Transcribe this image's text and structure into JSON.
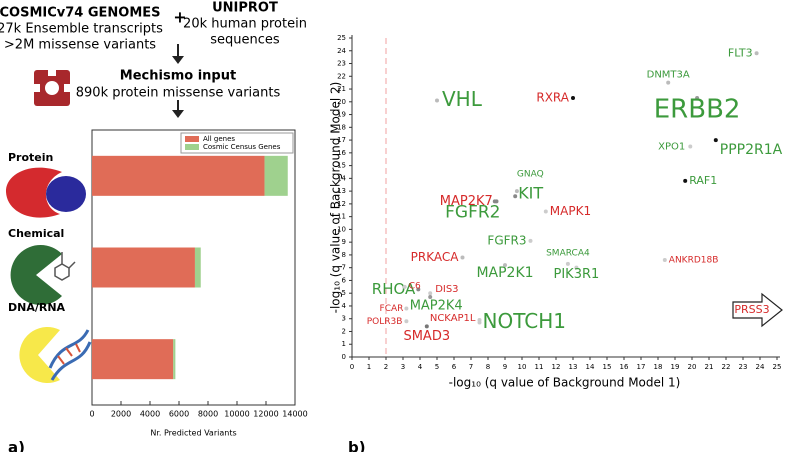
{
  "diagram": {
    "source1_title": "COSMICv74 GENOMES",
    "source1_line1": "27k Ensemble transcripts",
    "source1_line2": ">2M missense variants",
    "plus": "+",
    "source2_title": "UNIPROT",
    "source2_line1": "20k human protein",
    "source2_line2": "sequences",
    "input_title": "Mechismo input",
    "input_line": "890k protein missense variants"
  },
  "panel_labels": [
    "a)",
    "b)"
  ],
  "chart_data": [
    {
      "type": "bar",
      "orientation": "horizontal",
      "stacked": true,
      "categories": [
        "Protein",
        "Chemical",
        "DNA/RNA"
      ],
      "series": [
        {
          "name": "All genes",
          "color": "#e06c57",
          "values": [
            11900,
            7100,
            5600
          ]
        },
        {
          "name": "Cosmic Census Genes",
          "color": "#9fd18e",
          "values": [
            1600,
            400,
            150
          ]
        }
      ],
      "xlim": [
        0,
        14000
      ],
      "xticks": [
        0,
        2000,
        4000,
        6000,
        8000,
        10000,
        12000,
        14000
      ],
      "xlabel": "Nr. Predicted Variants",
      "legend": "upper right"
    },
    {
      "type": "scatter",
      "xlabel": "-log₁₀ (q value of Background Model 1)",
      "ylabel": "-log₁₀ (q value of Background Model 2)",
      "xlim": [
        0,
        25
      ],
      "ylim": [
        0,
        25
      ],
      "xticks": [
        0,
        1,
        2,
        3,
        4,
        5,
        6,
        7,
        8,
        9,
        10,
        11,
        12,
        13,
        14,
        15,
        16,
        17,
        18,
        19,
        20,
        21,
        22,
        23,
        24,
        25
      ],
      "yticks": [
        0,
        1,
        2,
        3,
        4,
        5,
        6,
        7,
        8,
        9,
        10,
        11,
        12,
        13,
        14,
        15,
        16,
        17,
        18,
        19,
        20,
        21,
        22,
        23,
        24,
        25
      ],
      "threshold_x": 2,
      "points": [
        {
          "label": "FLT3",
          "x": 23.8,
          "y": 23.8,
          "color": "#3c9a3c"
        },
        {
          "label": "DNMT3A",
          "x": 18.6,
          "y": 21.5,
          "color": "#3c9a3c"
        },
        {
          "label": "VHL",
          "x": 5.0,
          "y": 20.1,
          "color": "#3c9a3c"
        },
        {
          "label": "RXRA",
          "x": 13.0,
          "y": 20.3,
          "color": "#d62a2a"
        },
        {
          "label": "ERBB2",
          "x": 20.3,
          "y": 20.3,
          "color": "#3c9a3c"
        },
        {
          "label": "XPO1",
          "x": 19.9,
          "y": 16.5,
          "color": "#3c9a3c"
        },
        {
          "label": "PPP2R1A",
          "x": 21.4,
          "y": 17.0,
          "color": "#3c9a3c"
        },
        {
          "label": "GNAQ",
          "x": 9.7,
          "y": 13.0,
          "color": "#3c9a3c"
        },
        {
          "label": "KIT",
          "x": 9.6,
          "y": 12.6,
          "color": "#3c9a3c"
        },
        {
          "label": "RAF1",
          "x": 19.6,
          "y": 13.8,
          "color": "#3c9a3c"
        },
        {
          "label": "MAP2K7",
          "x": 8.4,
          "y": 12.2,
          "color": "#d62a2a"
        },
        {
          "label": "FGFR2",
          "x": 8.5,
          "y": 12.2,
          "color": "#3c9a3c"
        },
        {
          "label": "MAPK1",
          "x": 11.4,
          "y": 11.4,
          "color": "#d62a2a"
        },
        {
          "label": "FGFR3",
          "x": 10.5,
          "y": 9.1,
          "color": "#3c9a3c"
        },
        {
          "label": "SMARCA4",
          "x": 12.7,
          "y": 7.3,
          "color": "#3c9a3c"
        },
        {
          "label": "PRKACA",
          "x": 6.5,
          "y": 7.8,
          "color": "#d62a2a"
        },
        {
          "label": "ANKRD18B",
          "x": 18.4,
          "y": 7.6,
          "color": "#d62a2a"
        },
        {
          "label": "MAP2K1",
          "x": 9.0,
          "y": 7.2,
          "color": "#3c9a3c"
        },
        {
          "label": "PIK3R1",
          "x": 13.2,
          "y": 7.0,
          "color": "#3c9a3c"
        },
        {
          "label": "RHOA",
          "x": 3.9,
          "y": 5.3,
          "color": "#3c9a3c"
        },
        {
          "label": "C6",
          "x": 3.1,
          "y": 5.5,
          "color": "#d62a2a"
        },
        {
          "label": "DIS3",
          "x": 4.6,
          "y": 5.0,
          "color": "#d62a2a"
        },
        {
          "label": "FCAR",
          "x": 3.2,
          "y": 3.8,
          "color": "#d62a2a"
        },
        {
          "label": "MAP2K4",
          "x": 4.6,
          "y": 4.7,
          "color": "#3c9a3c"
        },
        {
          "label": "POLR3B",
          "x": 3.2,
          "y": 2.8,
          "color": "#d62a2a"
        },
        {
          "label": "NCKAP1L",
          "x": 7.5,
          "y": 2.9,
          "color": "#d62a2a"
        },
        {
          "label": "NOTCH1",
          "x": 7.5,
          "y": 2.7,
          "color": "#3c9a3c"
        },
        {
          "label": "SMAD3",
          "x": 4.4,
          "y": 2.4,
          "color": "#d62a2a"
        }
      ],
      "annotation": "PRSS3"
    }
  ]
}
